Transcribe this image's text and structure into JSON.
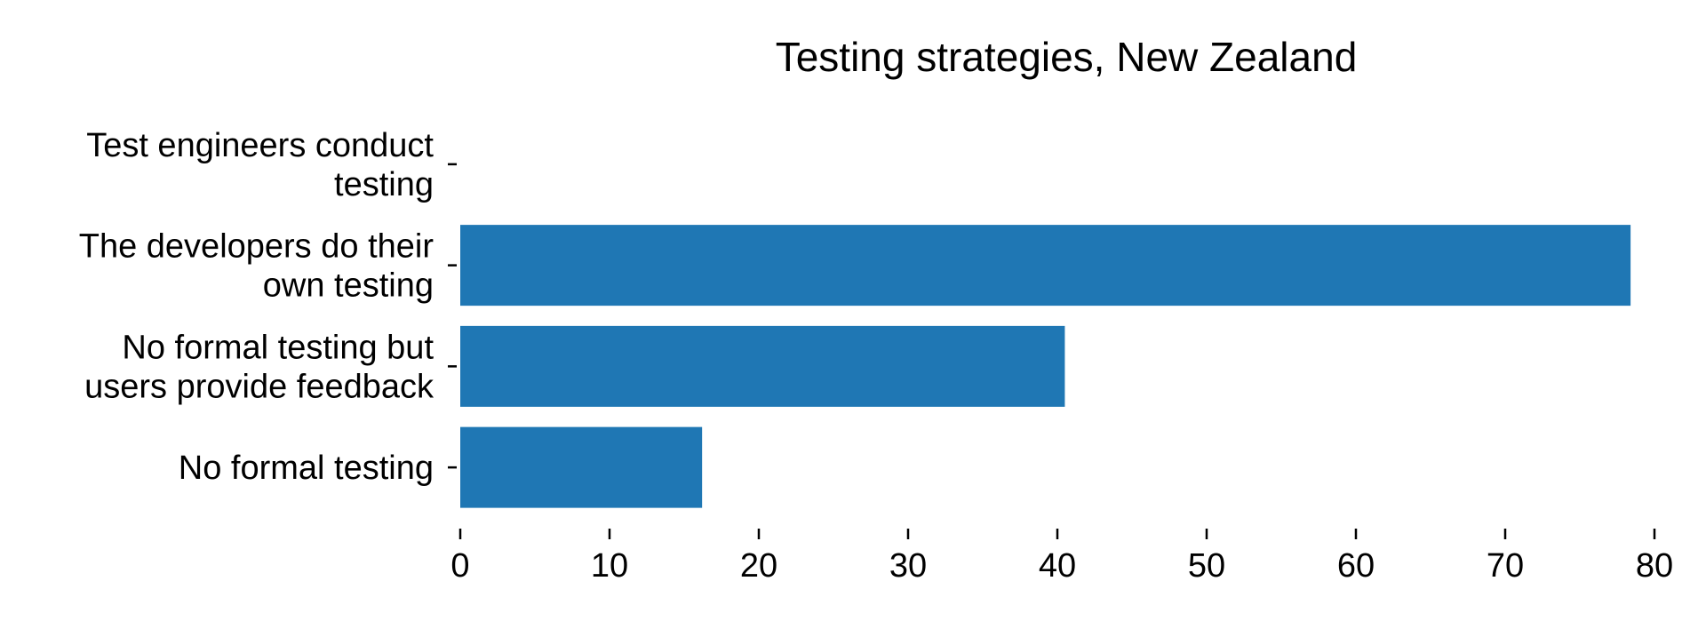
{
  "chart_data": {
    "type": "bar",
    "orientation": "horizontal",
    "title": "Testing strategies, New Zealand",
    "xlabel": "",
    "ylabel": "",
    "categories": [
      [
        "Test engineers conduct",
        "testing"
      ],
      [
        "The developers do their",
        "own testing"
      ],
      [
        "No formal testing but",
        "users provide feedback"
      ],
      [
        "No formal testing"
      ]
    ],
    "values": [
      0,
      78.4,
      40.5,
      16.2
    ],
    "xlim": [
      0,
      80
    ],
    "xticks": [
      0,
      10,
      20,
      30,
      40,
      50,
      60,
      70,
      80
    ],
    "grid": false,
    "bar_color": "#1f77b4"
  }
}
